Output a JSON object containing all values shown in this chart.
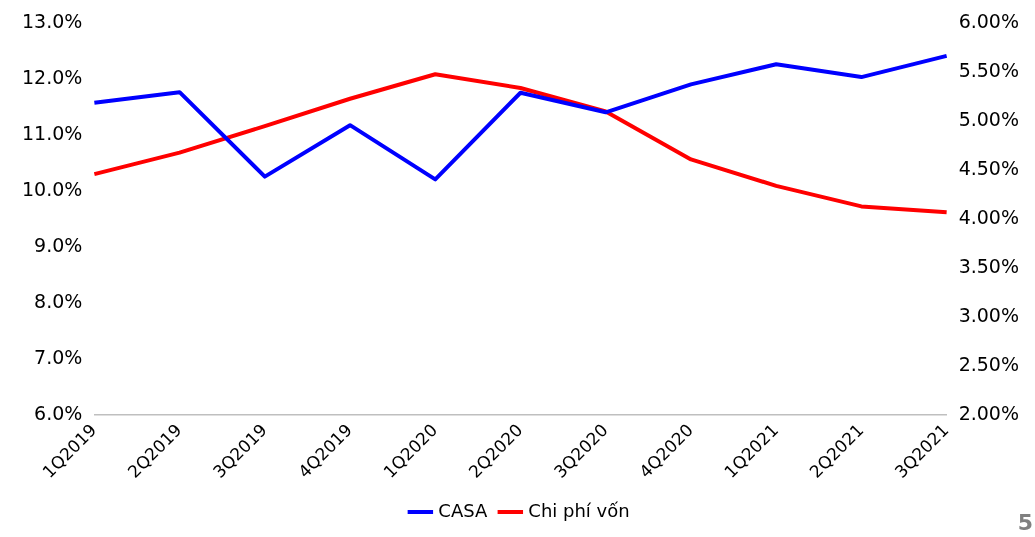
{
  "chart_data": {
    "type": "line",
    "categories": [
      "1Q2019",
      "2Q2019",
      "3Q2019",
      "4Q2019",
      "1Q2020",
      "2Q2020",
      "3Q2020",
      "4Q2020",
      "1Q2021",
      "2Q2021",
      "3Q2021"
    ],
    "series": [
      {
        "name": "CASA",
        "color": "#0000ff",
        "values": [
          11.58,
          11.77,
          10.26,
          11.18,
          10.21,
          11.76,
          11.41,
          11.91,
          12.27,
          12.04,
          12.42
        ]
      },
      {
        "name": "Chi phí vốn",
        "color": "#ff0000",
        "axis": "y2",
        "values": [
          4.46,
          4.68,
          4.95,
          5.23,
          5.48,
          5.34,
          5.1,
          4.61,
          4.34,
          4.13,
          4.07
        ]
      }
    ],
    "ylim": [
      6,
      13
    ],
    "yticks": [
      {
        "value": 6,
        "label": "6.0%"
      },
      {
        "value": 7,
        "label": "7.0%"
      },
      {
        "value": 8,
        "label": "8.0%"
      },
      {
        "value": 9,
        "label": "9.0%"
      },
      {
        "value": 10,
        "label": "10.0%"
      },
      {
        "value": 11,
        "label": "11.0%"
      },
      {
        "value": 12,
        "label": "12.0%"
      },
      {
        "value": 13,
        "label": "13.0%"
      }
    ],
    "y2lim": [
      2,
      6
    ],
    "y2ticks": [
      {
        "value": 2,
        "label": "2.00%"
      },
      {
        "value": 2.5,
        "label": "2.50%"
      },
      {
        "value": 3,
        "label": "3.00%"
      },
      {
        "value": 3.5,
        "label": "3.50%"
      },
      {
        "value": 4,
        "label": "4.00%"
      },
      {
        "value": 4.5,
        "label": "4.50%"
      },
      {
        "value": 5,
        "label": "5.00%"
      },
      {
        "value": 5.5,
        "label": "5.50%"
      },
      {
        "value": 6,
        "label": "6.00%"
      }
    ],
    "grid": false,
    "legend": "bottom",
    "marker": "none",
    "line_style": "solid",
    "annotations": [
      "5"
    ]
  }
}
